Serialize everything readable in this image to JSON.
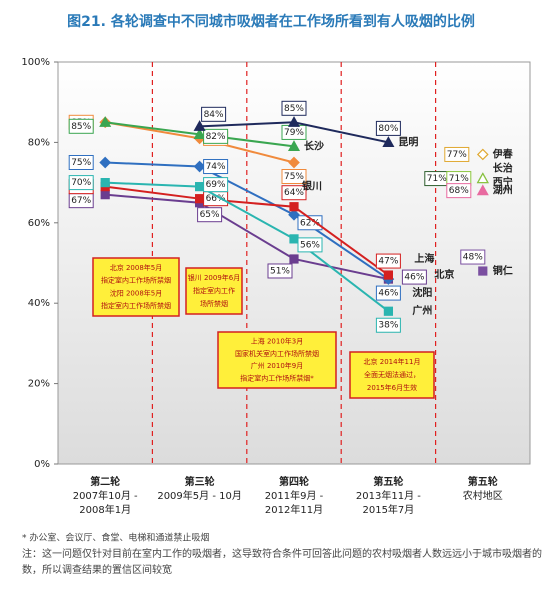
{
  "chart_data": {
    "type": "line",
    "title": "图21. 各轮调查中不同城市吸烟者在工作场所看到有人吸烟的比例",
    "categories": [
      [
        "第二轮",
        "2007年10月 -",
        "2008年1月"
      ],
      [
        "第三轮",
        "2009年5月 - 10月"
      ],
      [
        "第四轮",
        "2011年9月 -",
        "2012年11月"
      ],
      [
        "第五轮",
        "2013年11月 -",
        "2015年7月"
      ],
      [
        "第五轮",
        "农村地区"
      ]
    ],
    "ylim": [
      0,
      100
    ],
    "yticks": [
      {
        "value": 0,
        "label": "0%"
      },
      {
        "value": 20,
        "label": "20%"
      },
      {
        "value": 40,
        "label": "40%"
      },
      {
        "value": 60,
        "label": "60%"
      },
      {
        "value": 80,
        "label": "80%"
      },
      {
        "value": 100,
        "label": "100%"
      }
    ],
    "series": [
      {
        "name": "北京",
        "color": "#6a3d8f",
        "values": [
          67,
          65,
          51,
          46,
          null
        ],
        "value_labels": [
          "67%",
          "65%",
          "51%",
          "46%",
          null
        ]
      },
      {
        "name": "沈阳",
        "color": "#2f6fc0",
        "values": [
          75,
          74,
          62,
          46,
          null
        ],
        "value_labels": [
          "75%",
          "74%",
          "62%",
          "46%",
          null
        ]
      },
      {
        "name": "上海",
        "color": "#d42020",
        "values": [
          69,
          66,
          64,
          47,
          null
        ],
        "value_labels": [
          "69%",
          "66%",
          "64%",
          "47%",
          null
        ]
      },
      {
        "name": "广州",
        "color": "#2ab5b0",
        "values": [
          70,
          69,
          56,
          38,
          null
        ],
        "value_labels": [
          "70%",
          "69%",
          "56%",
          "38%",
          null
        ]
      },
      {
        "name": "银川",
        "color": "#f08a3c",
        "values": [
          85,
          81,
          75,
          null,
          null
        ],
        "value_labels": [
          "85%",
          "81%",
          "75%",
          null,
          null
        ]
      },
      {
        "name": "长沙",
        "color": "#3aa650",
        "values": [
          85,
          82,
          79,
          null,
          null
        ],
        "value_labels": [
          "85%",
          "82%",
          "79%",
          null,
          null
        ]
      },
      {
        "name": "昆明",
        "color": "#1f2a5c",
        "values": [
          null,
          84,
          85,
          80,
          null
        ],
        "value_labels": [
          null,
          "84%",
          "85%",
          "80%",
          null
        ]
      },
      {
        "name": "伊春",
        "color": "#e0a830",
        "values": [
          null,
          null,
          null,
          null,
          77
        ],
        "value_labels": [
          null,
          null,
          null,
          null,
          "77%"
        ]
      },
      {
        "name": "长治",
        "color": "#2e5e2e",
        "values": [
          null,
          null,
          null,
          null,
          71
        ],
        "value_labels": [
          null,
          null,
          null,
          null,
          "71%"
        ]
      },
      {
        "name": "西宁",
        "color": "#8cc63f",
        "values": [
          null,
          null,
          null,
          null,
          71
        ],
        "value_labels": [
          null,
          null,
          null,
          null,
          "71%"
        ]
      },
      {
        "name": "湖州",
        "color": "#e86aa0",
        "values": [
          null,
          null,
          null,
          null,
          68
        ],
        "value_labels": [
          null,
          null,
          null,
          null,
          "68%"
        ]
      },
      {
        "name": "铜仁",
        "color": "#7a4fa0",
        "values": [
          null,
          null,
          null,
          null,
          48
        ],
        "value_labels": [
          null,
          null,
          null,
          null,
          "48%"
        ]
      }
    ],
    "annotations": [
      [
        "北京 2008年5月",
        "指定室内工作场所禁烟",
        "沈阳 2008年5月",
        "指定室内工作场所禁烟"
      ],
      [
        "银川 2009年6月",
        "指定室内工作",
        "场所禁烟"
      ],
      [
        "上海 2010年3月",
        "国家机关室内工作场所禁烟",
        "广州 2010年9月",
        "指定室内工作场所禁烟*"
      ],
      [
        "北京 2014年11月",
        "全面无烟法通过，",
        "2015年6月生效"
      ]
    ],
    "notes": [
      "* 办公室、会议厅、食堂、电梯和通道禁止吸烟",
      "注：这一问题仅针对目前在室内工作的吸烟者，这导致符合条件可回答此问题的农村吸烟者人数远远小于城市吸烟者的人",
      "数，所以调查结果的置信区间较宽"
    ]
  }
}
